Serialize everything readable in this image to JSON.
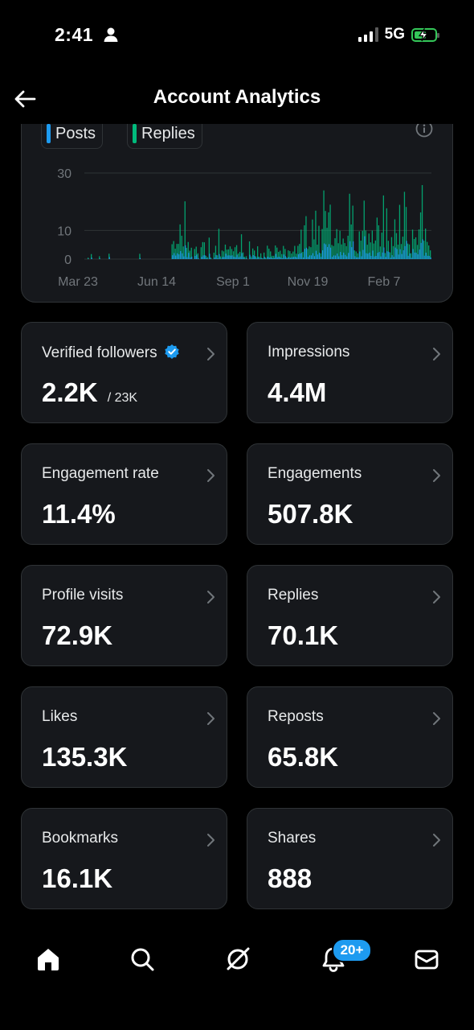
{
  "status_bar": {
    "time": "2:41",
    "network": "5G",
    "battery_level": 0.6
  },
  "header": {
    "title": "Account Analytics"
  },
  "chart_data": {
    "type": "bar",
    "legend": [
      {
        "label": "Posts",
        "color": "#1d9bf0"
      },
      {
        "label": "Replies",
        "color": "#00ba7c"
      }
    ],
    "y_ticks": [
      "30",
      "10",
      "0"
    ],
    "x_ticks": [
      "Mar 23",
      "Jun 14",
      "Sep 1",
      "Nov 19",
      "Feb 7"
    ],
    "ylim": [
      0,
      30
    ],
    "grid": true,
    "series": [
      {
        "name": "Posts",
        "approx_daily_range": [
          0,
          6
        ]
      },
      {
        "name": "Replies",
        "approx_daily_range": [
          0,
          28
        ]
      }
    ]
  },
  "stats": [
    {
      "label": "Verified followers",
      "value": "2.2K",
      "sub": "/ 23K",
      "verified": true
    },
    {
      "label": "Impressions",
      "value": "4.4M"
    },
    {
      "label": "Engagement rate",
      "value": "11.4%"
    },
    {
      "label": "Engagements",
      "value": "507.8K"
    },
    {
      "label": "Profile visits",
      "value": "72.9K"
    },
    {
      "label": "Replies",
      "value": "70.1K"
    },
    {
      "label": "Likes",
      "value": "135.3K"
    },
    {
      "label": "Reposts",
      "value": "65.8K"
    },
    {
      "label": "Bookmarks",
      "value": "16.1K"
    },
    {
      "label": "Shares",
      "value": "888"
    }
  ],
  "tab_bar": {
    "items": [
      "home-icon",
      "search-icon",
      "grok-icon",
      "notifications-icon",
      "messages-icon"
    ],
    "notifications_badge": "20+"
  },
  "colors": {
    "background": "#000000",
    "card": "#16181c",
    "border": "#2f3336",
    "accent": "#1d9bf0",
    "replies": "#00ba7c"
  }
}
